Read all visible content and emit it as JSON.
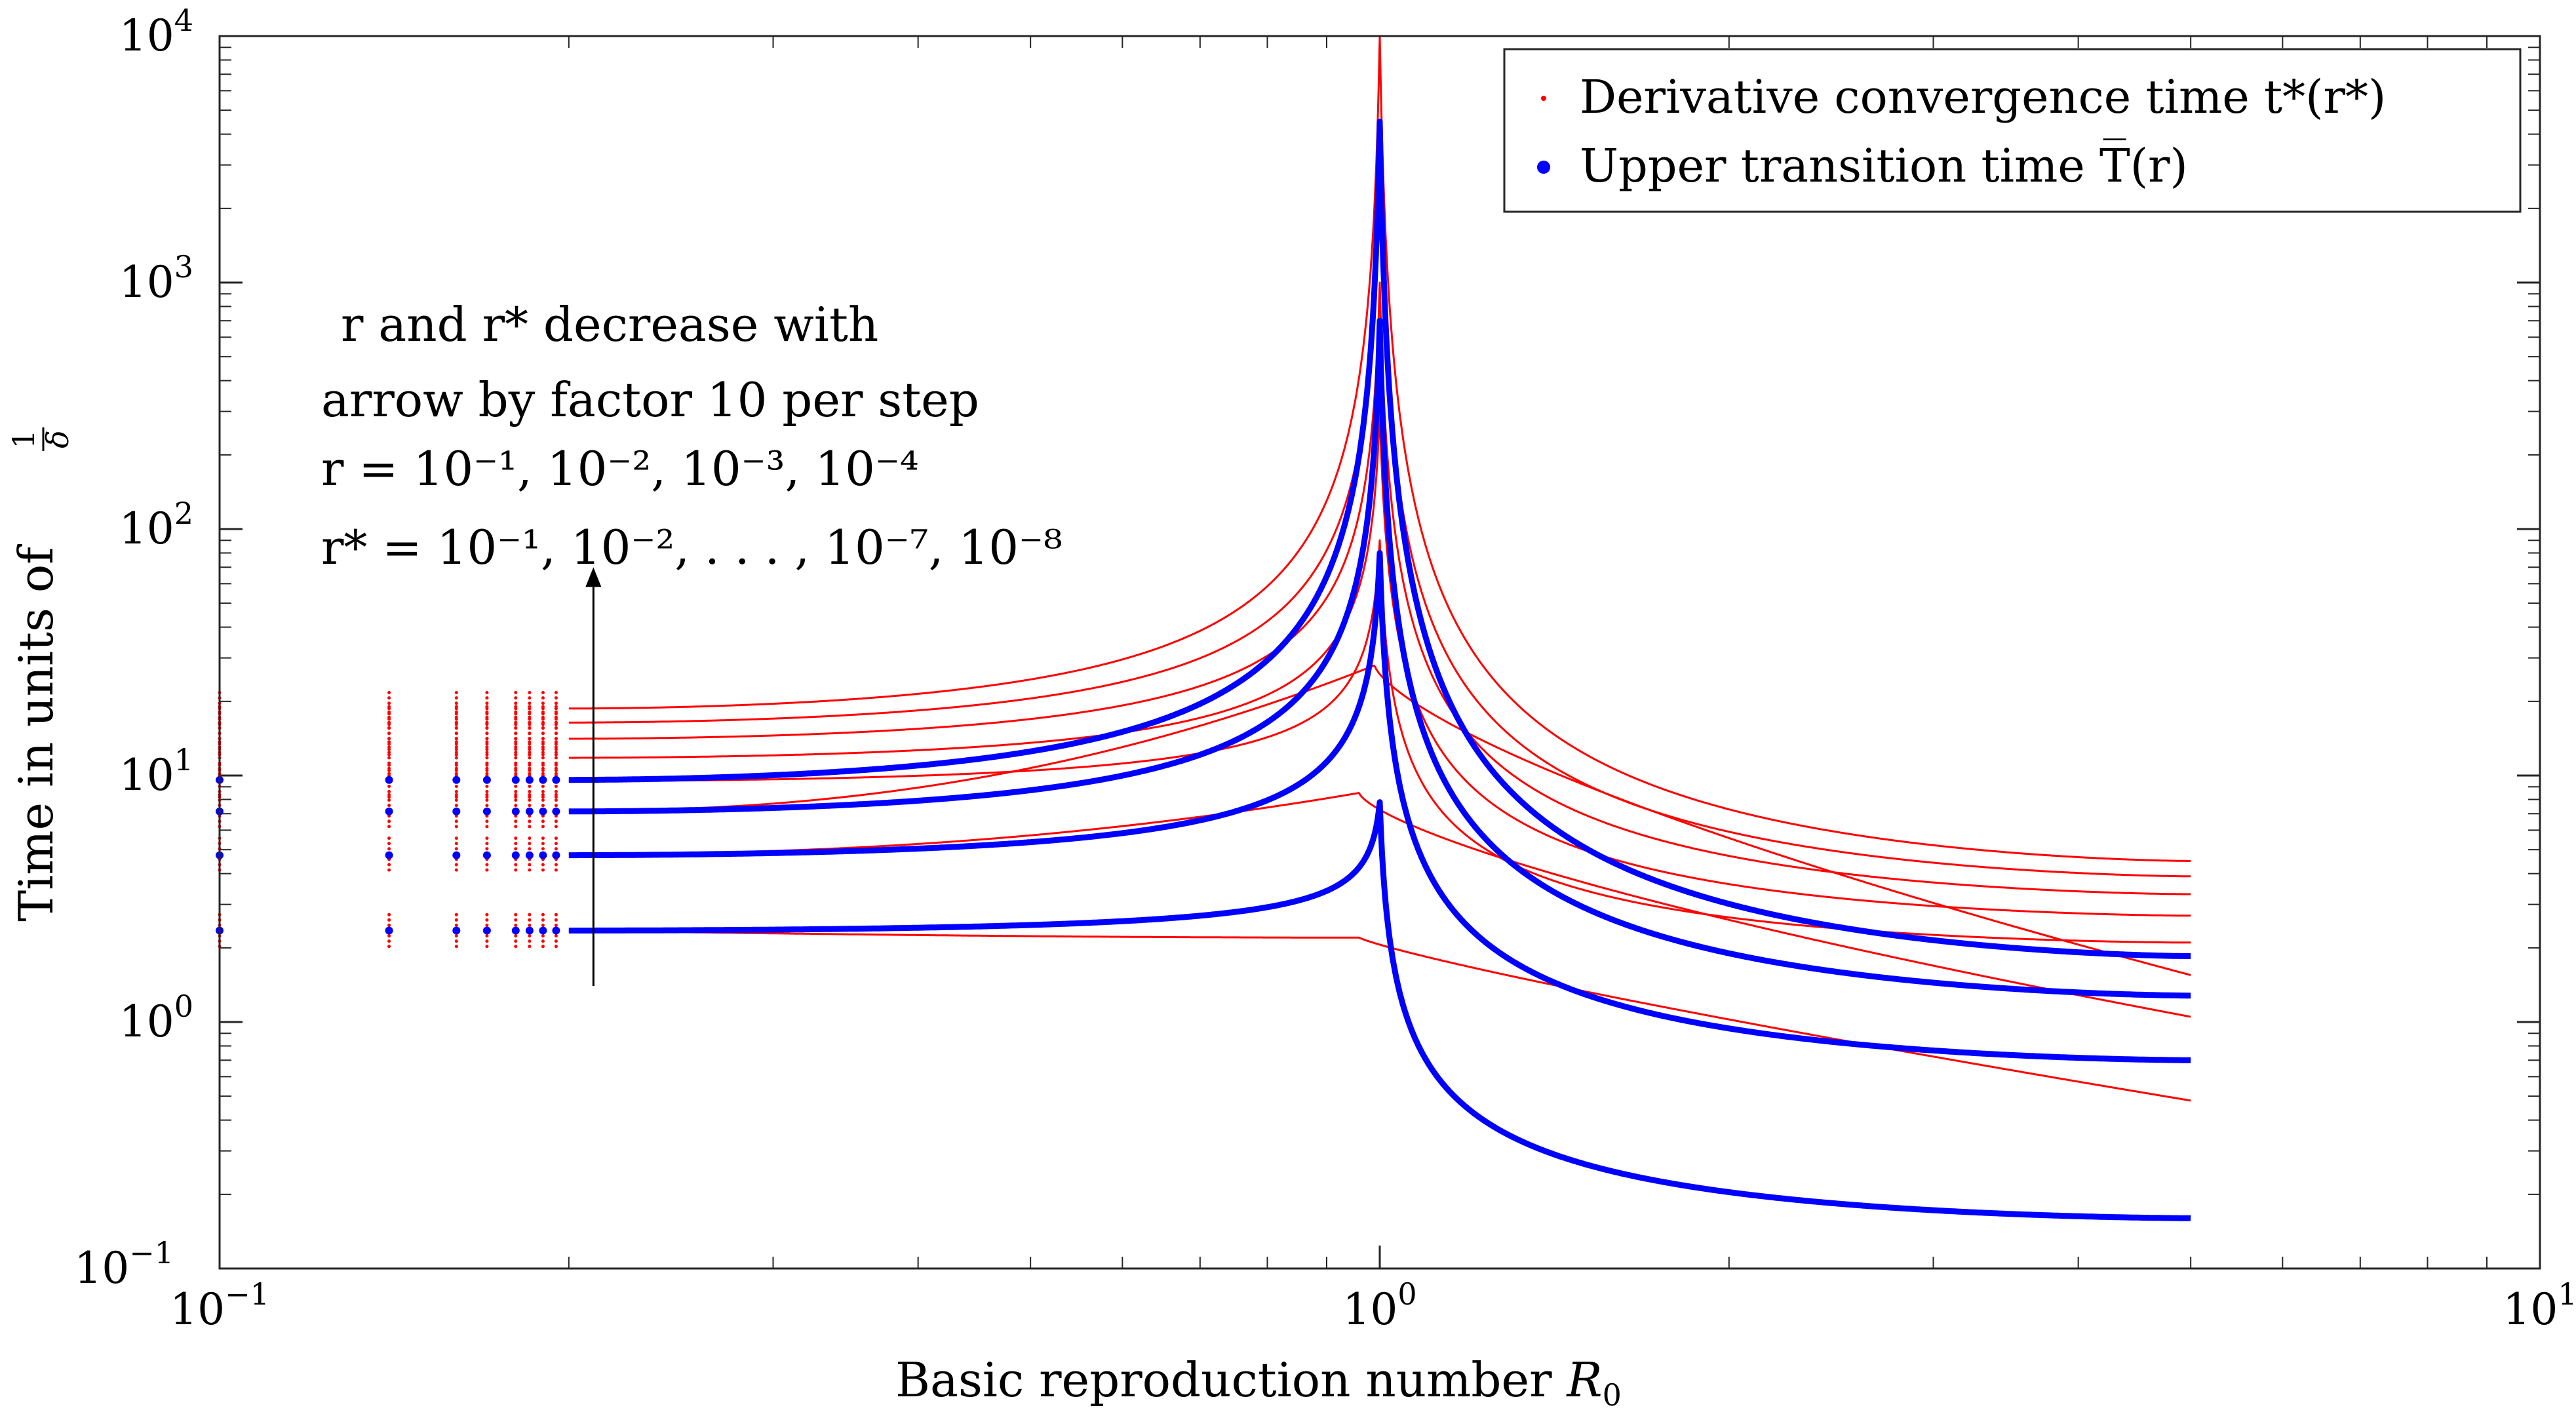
{
  "chart_data": {
    "type": "scatter",
    "xscale": "log",
    "yscale": "log",
    "xlim": [
      0.1,
      10
    ],
    "ylim": [
      0.1,
      10000
    ],
    "xlabel_text": "Basic reproduction number ",
    "xlabel_var": "R",
    "xlabel_sub": "0",
    "ylabel_text": "Time in units of ",
    "ylabel_frac_num": "1",
    "ylabel_frac_den": "δ",
    "x_ticks": [
      {
        "value": 0.1,
        "base": "10",
        "exp": "−1"
      },
      {
        "value": 1,
        "base": "10",
        "exp": "0"
      },
      {
        "value": 10,
        "base": "10",
        "exp": "1"
      }
    ],
    "y_ticks": [
      {
        "value": 0.1,
        "base": "10",
        "exp": "−1"
      },
      {
        "value": 1,
        "base": "10",
        "exp": "0"
      },
      {
        "value": 10,
        "base": "10",
        "exp": "1"
      },
      {
        "value": 100,
        "base": "10",
        "exp": "2"
      },
      {
        "value": 1000,
        "base": "10",
        "exp": "3"
      },
      {
        "value": 10000,
        "base": "10",
        "exp": "4"
      }
    ],
    "legend": {
      "placement": "top-right",
      "entries": [
        {
          "label": "Derivative convergence time t*(r*)",
          "color": "#ff0000",
          "marker": "small-dot"
        },
        {
          "label": "Upper transition time T̅(r)",
          "color": "#0000ff",
          "marker": "large-dot"
        }
      ]
    },
    "annotation": {
      "lines": [
        "r and r* decrease with",
        "arrow by factor 10 per step",
        "r = 10⁻¹, 10⁻², 10⁻³, 10⁻⁴",
        "r* = 10⁻¹, 10⁻², . . . , 10⁻⁷, 10⁻⁸"
      ],
      "arrow_x": 0.21,
      "arrow_y_range": [
        1.4,
        70
      ]
    },
    "series": [
      {
        "name": "t*(r*=1e-1)",
        "type": "derivative",
        "color": "#ff0000",
        "low": 2.35,
        "peak_x": 0.96,
        "peak_y": 2.2,
        "end_y": 0.48,
        "shape": "smooth"
      },
      {
        "name": "t*(r*=1e-2)",
        "type": "derivative",
        "color": "#ff0000",
        "low": 4.8,
        "peak_x": 0.96,
        "peak_y": 8.5,
        "end_y": 1.05,
        "shape": "bump"
      },
      {
        "name": "t*(r*=1e-3)",
        "type": "derivative",
        "color": "#ff0000",
        "low": 7.2,
        "peak_x": 0.99,
        "peak_y": 28,
        "end_y": 1.55,
        "shape": "bump"
      },
      {
        "name": "t*(r*=1e-4)",
        "type": "derivative",
        "color": "#ff0000",
        "low": 9.5,
        "peak_x": 1.0,
        "peak_y": 90,
        "end_y": 2.1,
        "shape": "cusp"
      },
      {
        "name": "t*(r*=1e-5)",
        "type": "derivative",
        "color": "#ff0000",
        "low": 11.8,
        "peak_x": 1.0,
        "peak_y": 300,
        "end_y": 2.7,
        "shape": "cusp"
      },
      {
        "name": "t*(r*=1e-6)",
        "type": "derivative",
        "color": "#ff0000",
        "low": 14.1,
        "peak_x": 1.0,
        "peak_y": 1000,
        "end_y": 3.3,
        "shape": "cusp"
      },
      {
        "name": "t*(r*=1e-7)",
        "type": "derivative",
        "color": "#ff0000",
        "low": 16.4,
        "peak_x": 1.0,
        "peak_y": 3000,
        "end_y": 3.9,
        "shape": "cusp"
      },
      {
        "name": "t*(r*=1e-8)",
        "type": "derivative",
        "color": "#ff0000",
        "low": 18.7,
        "peak_x": 1.0,
        "peak_y": 10000,
        "end_y": 4.5,
        "shape": "cusp"
      },
      {
        "name": "T(r=1e-1)",
        "type": "transition",
        "color": "#0000ff",
        "low": 2.35,
        "peak_x": 1.0,
        "peak_y": 7.8,
        "end_y": 0.16,
        "shape": "cusp"
      },
      {
        "name": "T(r=1e-2)",
        "type": "transition",
        "color": "#0000ff",
        "low": 4.75,
        "peak_x": 1.0,
        "peak_y": 80,
        "end_y": 0.7,
        "shape": "cusp"
      },
      {
        "name": "T(r=1e-3)",
        "type": "transition",
        "color": "#0000ff",
        "low": 7.15,
        "peak_x": 1.0,
        "peak_y": 700,
        "end_y": 1.28,
        "shape": "cusp"
      },
      {
        "name": "T(r=1e-4)",
        "type": "transition",
        "color": "#0000ff",
        "low": 9.6,
        "peak_x": 1.0,
        "peak_y": 4500,
        "end_y": 1.85,
        "shape": "cusp"
      }
    ],
    "x_range_data": [
      0.2,
      5.0
    ]
  }
}
